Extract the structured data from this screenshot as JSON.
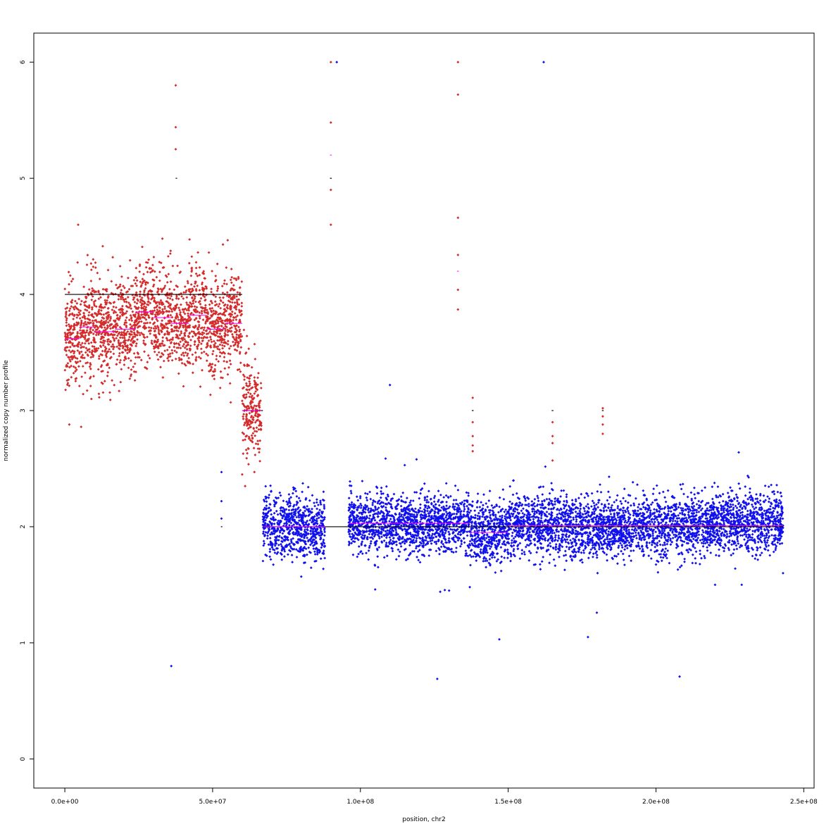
{
  "chart_data": {
    "type": "scatter",
    "title": "",
    "xlabel": "position, chr2",
    "ylabel": "normalized copy number profile",
    "xlim": [
      -10500000,
      253500000
    ],
    "ylim": [
      -0.25,
      6.25
    ],
    "x_ticks": [
      {
        "value": 0,
        "label": "0.0e+00"
      },
      {
        "value": 50000000,
        "label": "5.0e+07"
      },
      {
        "value": 100000000,
        "label": "1.0e+08"
      },
      {
        "value": 150000000,
        "label": "1.5e+08"
      },
      {
        "value": 200000000,
        "label": "2.0e+08"
      },
      {
        "value": 250000000,
        "label": "2.5e+08"
      }
    ],
    "y_ticks": [
      {
        "value": 0,
        "label": "0"
      },
      {
        "value": 1,
        "label": "1"
      },
      {
        "value": 2,
        "label": "2"
      },
      {
        "value": 3,
        "label": "3"
      },
      {
        "value": 4,
        "label": "4"
      },
      {
        "value": 5,
        "label": "5"
      },
      {
        "value": 6,
        "label": "6"
      }
    ],
    "grid": false,
    "legend": "none",
    "colors": {
      "gain": "#d42a2a",
      "normal": "#1010ee",
      "segment": "#000000",
      "median": "#ff00ff"
    },
    "series": [
      {
        "color": "red",
        "description_values": "dense bands (x_start, x_end, mean, spread)",
        "bands": [
          [
            0,
            5000000,
            3.62,
            0.22
          ],
          [
            5000000,
            10000000,
            3.72,
            0.22
          ],
          [
            10000000,
            17000000,
            3.68,
            0.22
          ],
          [
            17000000,
            24000000,
            3.7,
            0.2
          ],
          [
            24000000,
            30000000,
            3.85,
            0.2
          ],
          [
            30000000,
            36000000,
            3.8,
            0.22
          ],
          [
            36000000,
            42000000,
            3.75,
            0.2
          ],
          [
            42000000,
            48000000,
            3.82,
            0.22
          ],
          [
            48000000,
            54000000,
            3.7,
            0.2
          ],
          [
            54000000,
            60000000,
            3.75,
            0.2
          ],
          [
            60000000,
            63000000,
            3.05,
            0.25
          ],
          [
            63000000,
            66500000,
            3.0,
            0.18
          ]
        ],
        "outliers": [
          [
            1500000,
            2.88
          ],
          [
            5500000,
            2.86
          ],
          [
            4500000,
            4.6
          ],
          [
            9000000,
            3.1
          ],
          [
            37500000,
            5.8
          ],
          [
            37500000,
            5.44
          ],
          [
            37500000,
            5.25
          ],
          [
            90000000,
            6.0
          ],
          [
            90000000,
            5.48
          ],
          [
            90000000,
            4.9
          ],
          [
            90000000,
            4.6
          ],
          [
            133000000,
            6.0
          ],
          [
            133000000,
            5.72
          ],
          [
            133000000,
            4.66
          ],
          [
            133000000,
            4.34
          ],
          [
            133000000,
            4.04
          ],
          [
            133000000,
            3.87
          ],
          [
            138000000,
            3.11
          ],
          [
            138000000,
            2.9
          ],
          [
            138000000,
            2.78
          ],
          [
            138000000,
            2.7
          ],
          [
            138000000,
            2.65
          ],
          [
            165000000,
            2.9
          ],
          [
            165000000,
            2.78
          ],
          [
            165000000,
            2.72
          ],
          [
            165000000,
            2.57
          ],
          [
            182000000,
            3.02
          ],
          [
            182000000,
            2.95
          ],
          [
            182000000,
            2.88
          ],
          [
            182000000,
            2.8
          ],
          [
            60000000,
            2.45
          ],
          [
            61000000,
            2.35
          ],
          [
            33000000,
            4.48
          ],
          [
            53500000,
            4.43
          ]
        ]
      },
      {
        "color": "blue",
        "description_values": "dense bands (x_start, x_end, mean, spread)",
        "bands": [
          [
            67000000,
            88000000,
            2.0,
            0.13
          ],
          [
            96000000,
            110000000,
            2.03,
            0.13
          ],
          [
            110000000,
            125000000,
            2.02,
            0.12
          ],
          [
            125000000,
            137000000,
            2.03,
            0.12
          ],
          [
            137000000,
            150000000,
            1.95,
            0.13
          ],
          [
            150000000,
            165000000,
            2.02,
            0.13
          ],
          [
            165000000,
            185000000,
            2.0,
            0.13
          ],
          [
            185000000,
            200000000,
            2.0,
            0.12
          ],
          [
            200000000,
            215000000,
            2.0,
            0.13
          ],
          [
            215000000,
            243000000,
            2.03,
            0.13
          ]
        ],
        "outliers": [
          [
            36000000,
            0.8
          ],
          [
            53000000,
            2.47
          ],
          [
            53000000,
            2.22
          ],
          [
            53000000,
            2.07
          ],
          [
            92000000,
            6.0
          ],
          [
            110000000,
            3.22
          ],
          [
            162000000,
            6.0
          ],
          [
            105000000,
            1.46
          ],
          [
            126000000,
            0.69
          ],
          [
            130000000,
            1.45
          ],
          [
            127000000,
            1.44
          ],
          [
            147000000,
            1.03
          ],
          [
            177000000,
            1.05
          ],
          [
            180000000,
            1.26
          ],
          [
            208000000,
            0.71
          ],
          [
            220000000,
            1.5
          ],
          [
            229000000,
            1.5
          ],
          [
            228000000,
            2.64
          ],
          [
            243000000,
            1.6
          ],
          [
            119000000,
            2.58
          ],
          [
            115000000,
            2.53
          ],
          [
            80000000,
            1.57
          ],
          [
            137000000,
            1.48
          ]
        ]
      }
    ],
    "segments": [
      {
        "x0": 0,
        "x1": 60000000,
        "y": 4.0
      },
      {
        "x0": 60000000,
        "x1": 67000000,
        "y": 3.0
      },
      {
        "x0": 67000000,
        "x1": 243000000,
        "y": 2.0
      },
      {
        "x0": 37500000,
        "x1": 38000000,
        "y": 5.0
      },
      {
        "x0": 89700000,
        "x1": 90300000,
        "y": 5.0
      },
      {
        "x0": 52800000,
        "x1": 53300000,
        "y": 2.0
      },
      {
        "x0": 137700000,
        "x1": 138300000,
        "y": 3.0
      },
      {
        "x0": 164700000,
        "x1": 165300000,
        "y": 3.0
      },
      {
        "x0": 181700000,
        "x1": 182300000,
        "y": 3.0
      }
    ],
    "median_segments": [
      {
        "x0": 0,
        "x1": 5000000,
        "y": 3.62
      },
      {
        "x0": 5000000,
        "x1": 10000000,
        "y": 3.72
      },
      {
        "x0": 10000000,
        "x1": 17000000,
        "y": 3.68
      },
      {
        "x0": 17000000,
        "x1": 24000000,
        "y": 3.7
      },
      {
        "x0": 24000000,
        "x1": 30000000,
        "y": 3.85
      },
      {
        "x0": 30000000,
        "x1": 36000000,
        "y": 3.8
      },
      {
        "x0": 36000000,
        "x1": 42000000,
        "y": 3.75
      },
      {
        "x0": 42000000,
        "x1": 48000000,
        "y": 3.82
      },
      {
        "x0": 48000000,
        "x1": 54000000,
        "y": 3.7
      },
      {
        "x0": 54000000,
        "x1": 60000000,
        "y": 3.75
      },
      {
        "x0": 60000000,
        "x1": 66500000,
        "y": 3.0
      },
      {
        "x0": 67000000,
        "x1": 88000000,
        "y": 2.0
      },
      {
        "x0": 96000000,
        "x1": 137000000,
        "y": 2.03
      },
      {
        "x0": 137000000,
        "x1": 150000000,
        "y": 1.95
      },
      {
        "x0": 150000000,
        "x1": 243000000,
        "y": 2.01
      },
      {
        "x0": 89700000,
        "x1": 90300000,
        "y": 5.2
      },
      {
        "x0": 132700000,
        "x1": 133300000,
        "y": 4.2
      }
    ]
  }
}
